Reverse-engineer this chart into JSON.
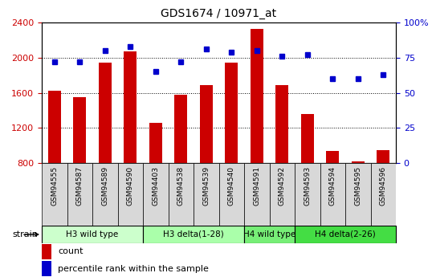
{
  "title": "GDS1674 / 10971_at",
  "categories": [
    "GSM94555",
    "GSM94587",
    "GSM94589",
    "GSM94590",
    "GSM94403",
    "GSM94538",
    "GSM94539",
    "GSM94540",
    "GSM94591",
    "GSM94592",
    "GSM94593",
    "GSM94594",
    "GSM94595",
    "GSM94596"
  ],
  "bar_values": [
    1620,
    1550,
    1940,
    2070,
    1260,
    1580,
    1690,
    1940,
    2330,
    1690,
    1360,
    940,
    820,
    950
  ],
  "dot_values": [
    72,
    72,
    80,
    83,
    65,
    72,
    81,
    79,
    80,
    76,
    77,
    60,
    60,
    63
  ],
  "bar_color": "#cc0000",
  "dot_color": "#0000cc",
  "ylim_left": [
    800,
    2400
  ],
  "ylim_right": [
    0,
    100
  ],
  "yticks_left": [
    800,
    1200,
    1600,
    2000,
    2400
  ],
  "yticks_right": [
    0,
    25,
    50,
    75,
    100
  ],
  "groups": [
    {
      "label": "H3 wild type",
      "start": 0,
      "end": 3,
      "color": "#ccffcc"
    },
    {
      "label": "H3 delta(1-28)",
      "start": 4,
      "end": 7,
      "color": "#aaffaa"
    },
    {
      "label": "H4 wild type",
      "start": 8,
      "end": 9,
      "color": "#77ee77"
    },
    {
      "label": "H4 delta(2-26)",
      "start": 10,
      "end": 13,
      "color": "#44dd44"
    }
  ],
  "strain_label": "strain",
  "legend_bar": "count",
  "legend_dot": "percentile rank within the sample",
  "tick_bg_color": "#d8d8d8",
  "background_color": "#ffffff"
}
